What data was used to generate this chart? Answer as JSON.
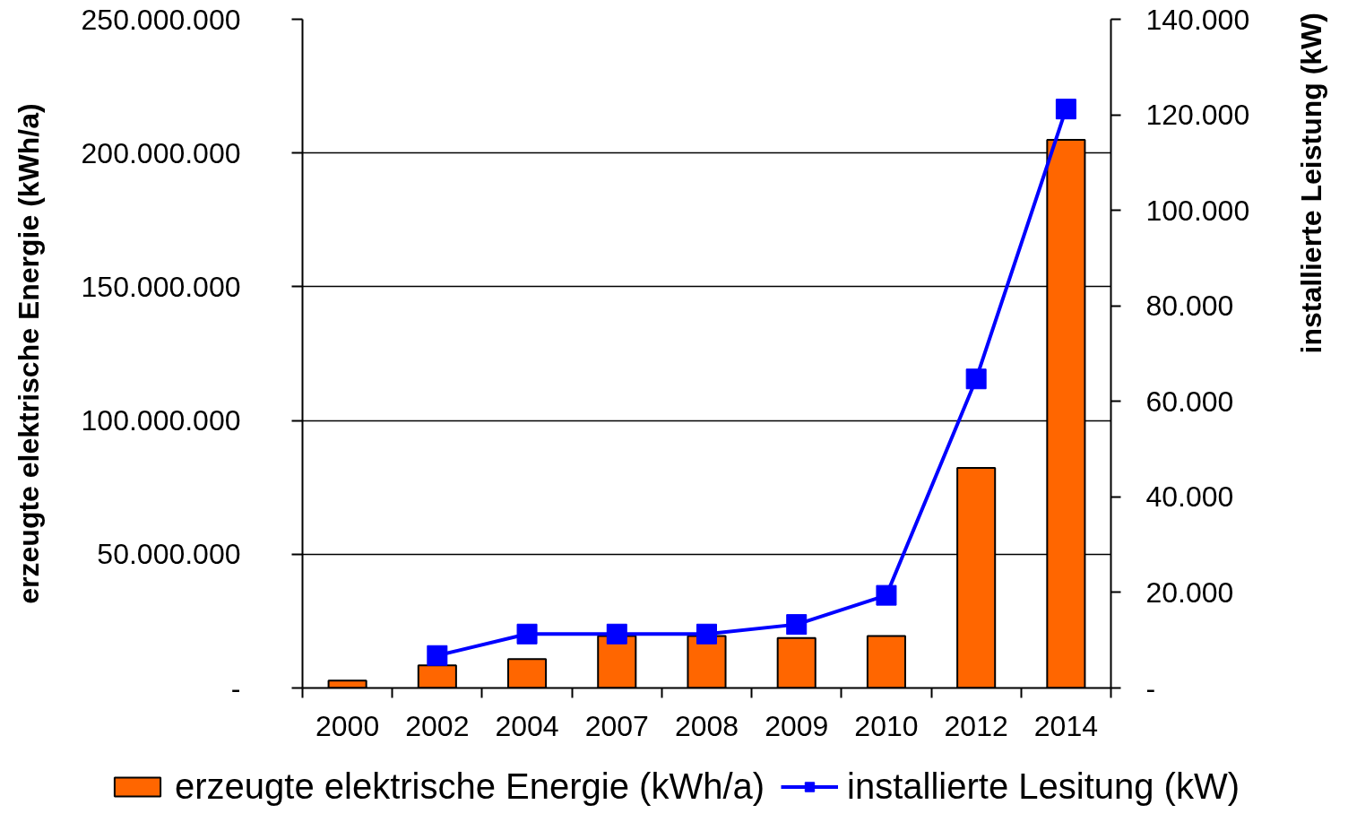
{
  "chart_data": {
    "type": "bar",
    "categories": [
      "2000",
      "2002",
      "2004",
      "2007",
      "2008",
      "2009",
      "2010",
      "2012",
      "2014"
    ],
    "series": [
      {
        "name": "erzeugte elektrische Energie (kWh/a)",
        "color": "#ff6600",
        "values": [
          2800000,
          8500000,
          10800000,
          19400000,
          19400000,
          18700000,
          19400000,
          82300000,
          204900000
        ]
      },
      {
        "name": "installierte Lesitung (kW)",
        "type": "line",
        "axis": "y2",
        "color": "#0000ff",
        "values": [
          null,
          6800,
          11300,
          11300,
          11300,
          13300,
          19400,
          64700,
          121200
        ]
      }
    ],
    "ylabel": "erzeugte elektrische Energie (kWh/a)",
    "y2label": "installierte Leistung (kW)",
    "ylim": [
      0,
      250000000
    ],
    "yticks": [
      {
        "value": 0,
        "label": "-"
      },
      {
        "value": 50000000,
        "label": "50.000.000"
      },
      {
        "value": 100000000,
        "label": "100.000.000"
      },
      {
        "value": 150000000,
        "label": "150.000.000"
      },
      {
        "value": 200000000,
        "label": "200.000.000"
      },
      {
        "value": 250000000,
        "label": "250.000.000"
      }
    ],
    "y2lim": [
      0,
      140000
    ],
    "y2ticks": [
      {
        "value": 0,
        "label": "-"
      },
      {
        "value": 20000,
        "label": "20.000"
      },
      {
        "value": 40000,
        "label": "40.000"
      },
      {
        "value": 60000,
        "label": "60.000"
      },
      {
        "value": 80000,
        "label": "80.000"
      },
      {
        "value": 100000,
        "label": "100.000"
      },
      {
        "value": 120000,
        "label": "120.000"
      },
      {
        "value": 140000,
        "label": "140.000"
      }
    ],
    "grid": "y",
    "legend": "bottom",
    "marker": "square"
  }
}
